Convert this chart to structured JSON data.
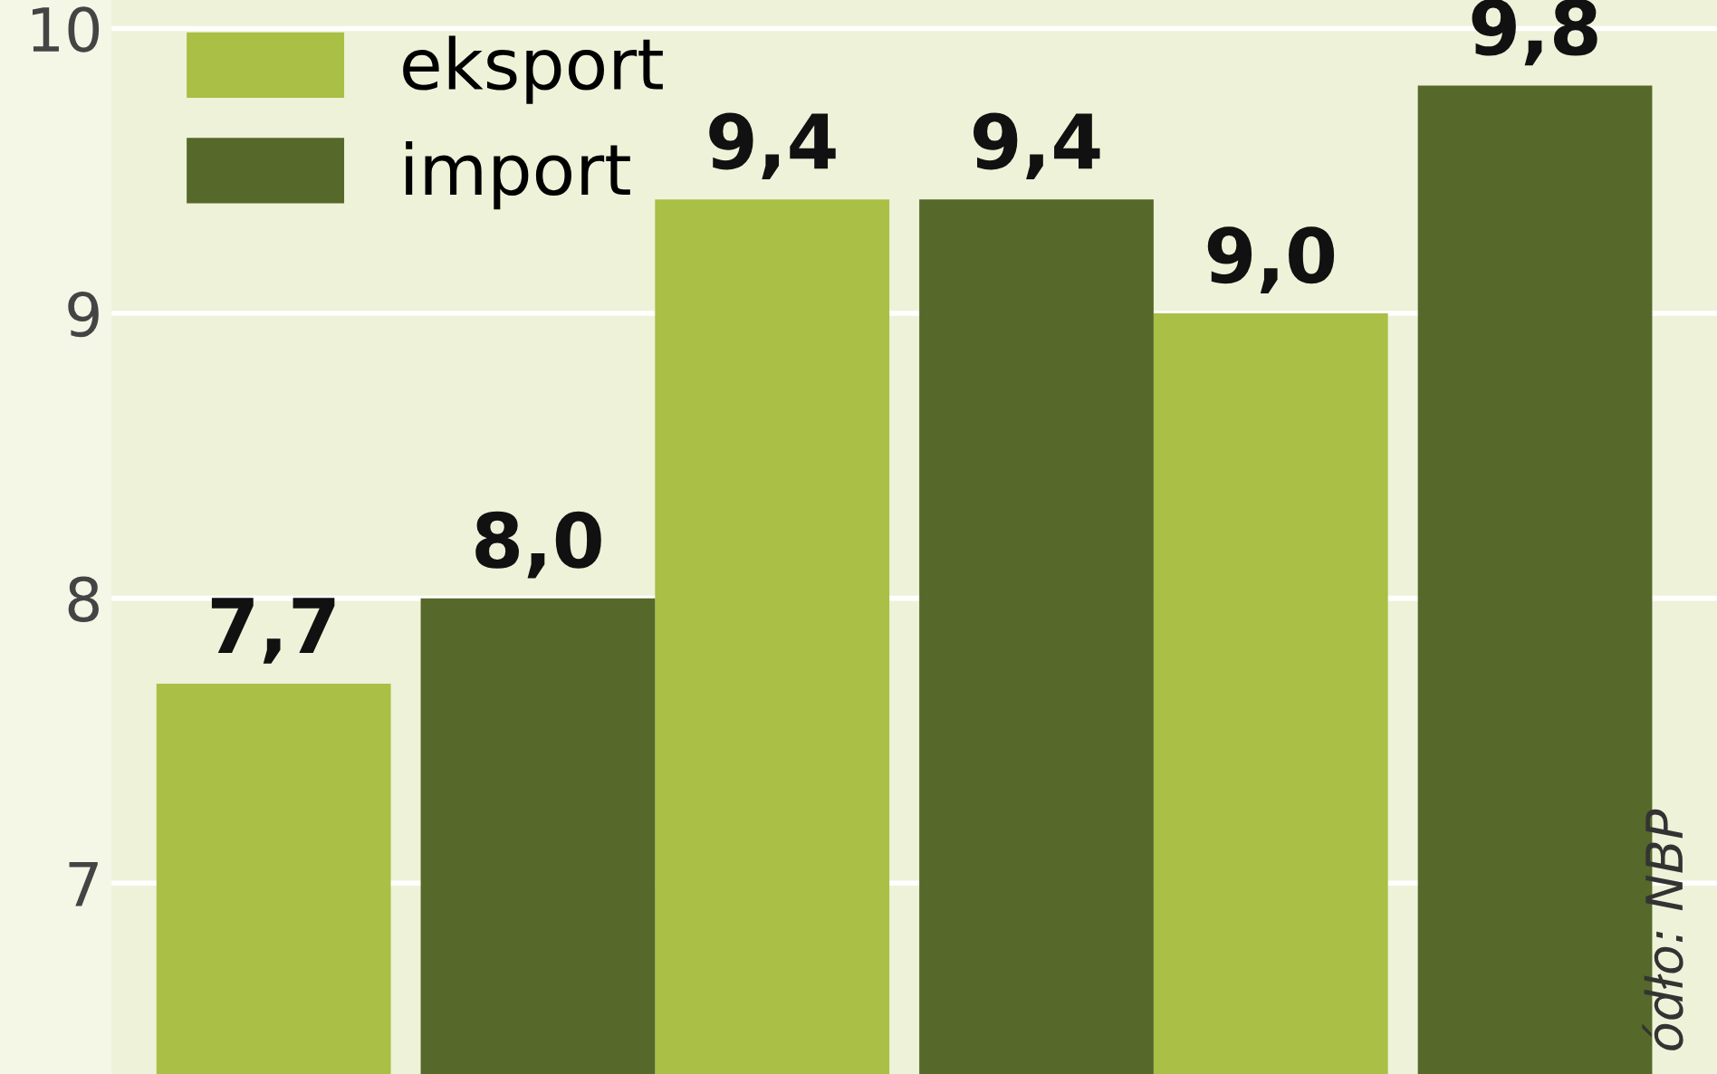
{
  "chart_data": {
    "type": "bar",
    "categories": [
      null,
      null,
      null
    ],
    "series": [
      {
        "name": "eksport",
        "color": "#a9bf45",
        "values": [
          7.7,
          9.4,
          9.0
        ],
        "value_labels": [
          "7,7",
          "9,4",
          "9,0"
        ]
      },
      {
        "name": "import",
        "color": "#56682a",
        "values": [
          8.0,
          9.4,
          9.8
        ],
        "value_labels": [
          "8,0",
          "9,4",
          "9,8"
        ]
      }
    ],
    "ylim": [
      6.33,
      10.1
    ],
    "yticks": [
      7,
      8,
      9,
      10
    ],
    "grid": "y",
    "legend": "top left",
    "tick_labels": "y",
    "annotations": [
      "ódło: NBP"
    ]
  }
}
